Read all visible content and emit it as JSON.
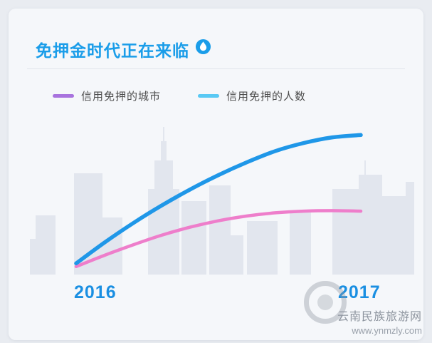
{
  "page": {
    "background": "#e9ecf1",
    "card_background": "#f5f7fa",
    "skyline_color": "#e2e6ee"
  },
  "header": {
    "title": "免押金时代正在来临",
    "title_color": "#1a9de9",
    "icon": "water-drop-icon",
    "icon_color": "#1a9de9"
  },
  "legend": {
    "items": [
      {
        "label": "信用免押的城市",
        "color": "#a873de"
      },
      {
        "label": "信用免押的人数",
        "color": "#59c9f4"
      }
    ]
  },
  "chart_data": {
    "type": "line",
    "title": "免押金时代正在来临",
    "grid": false,
    "legend_position": "top",
    "x_axis": {
      "ticks": [
        "2016",
        "2017"
      ],
      "label_color": "#1a8fe2"
    },
    "y_axis": {
      "visible": false,
      "range": [
        0,
        100
      ]
    },
    "series": [
      {
        "key": "cities",
        "name": "信用免押的城市",
        "color": "#ee7ecb",
        "width": 4.5,
        "values": [
          5,
          12,
          18.5,
          24.5,
          29.5,
          33.5,
          36.5,
          38.5,
          39.5,
          39.8,
          39.5
        ]
      },
      {
        "key": "people",
        "name": "信用免押的人数",
        "color": "#1f97e8",
        "width": 5.5,
        "values": [
          7,
          20,
          32,
          43,
          53,
          62,
          70,
          77,
          82,
          85.5,
          87
        ]
      }
    ]
  },
  "watermark": {
    "site_name": "云南民族旅游网",
    "site_url": "www.ynmzly.com"
  }
}
